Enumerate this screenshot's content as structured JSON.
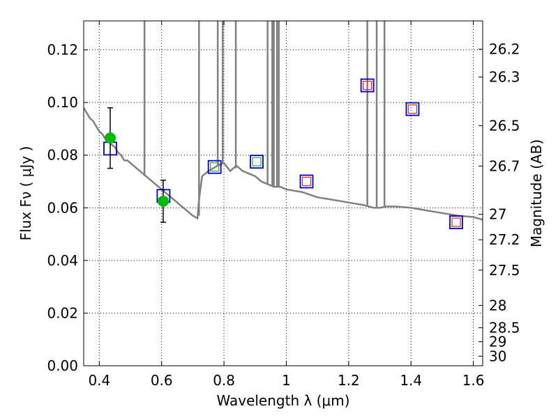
{
  "chart_data": {
    "type": "line",
    "xlabel": "Wavelength  λ (μm)",
    "ylabel": "Flux  Fν  ( μJy )",
    "y2label": "Magnitude (AB)",
    "xlim": [
      0.35,
      1.63
    ],
    "ylim": [
      0.0,
      0.131
    ],
    "x_ticks": [
      0.4,
      0.6,
      0.8,
      1.0,
      1.2,
      1.4,
      1.6
    ],
    "x_tick_labels": [
      "0.4",
      "0.6",
      "0.8",
      "1",
      "1.2",
      "1.4",
      "1.6"
    ],
    "y_ticks": [
      0.0,
      0.02,
      0.04,
      0.06,
      0.08,
      0.1,
      0.12
    ],
    "y_tick_labels": [
      "0.00",
      "0.02",
      "0.04",
      "0.06",
      "0.08",
      "0.10",
      "0.12"
    ],
    "y2_ticks": [
      26.2,
      26.3,
      26.5,
      26.7,
      27,
      27.2,
      27.5,
      28,
      28.5,
      29,
      30
    ],
    "y2_tick_labels": [
      "26.2",
      "26.3",
      "26.5",
      "26.7",
      "27",
      "27.2",
      "27.5",
      "28",
      "28.5",
      "29",
      "30"
    ],
    "grid": true,
    "colors": {
      "model": "#808080",
      "observed": "#00bb00",
      "model_band_box": "#0000cc",
      "band_box_red": "#dd3333",
      "band_box_green": "#33bb33"
    },
    "series": [
      {
        "style": "line",
        "points": [
          [
            0.35,
            0.098
          ],
          [
            0.36,
            0.096
          ],
          [
            0.37,
            0.094
          ],
          [
            0.38,
            0.093
          ],
          [
            0.39,
            0.091
          ],
          [
            0.4,
            0.089
          ],
          [
            0.41,
            0.088
          ],
          [
            0.42,
            0.086
          ],
          [
            0.43,
            0.085
          ],
          [
            0.44,
            0.084
          ],
          [
            0.45,
            0.083
          ],
          [
            0.46,
            0.081
          ],
          [
            0.47,
            0.08
          ],
          [
            0.48,
            0.078
          ],
          [
            0.49,
            0.078
          ],
          [
            0.5,
            0.077
          ],
          [
            0.52,
            0.075
          ],
          [
            0.54,
            0.073
          ],
          [
            0.56,
            0.071
          ],
          [
            0.58,
            0.069
          ],
          [
            0.6,
            0.067
          ],
          [
            0.62,
            0.065
          ],
          [
            0.64,
            0.063
          ],
          [
            0.66,
            0.061
          ],
          [
            0.68,
            0.059
          ],
          [
            0.7,
            0.057
          ],
          [
            0.715,
            0.056
          ],
          [
            0.72,
            0.063
          ],
          [
            0.73,
            0.072
          ],
          [
            0.75,
            0.074
          ],
          [
            0.78,
            0.076
          ],
          [
            0.8,
            0.077
          ],
          [
            0.82,
            0.074
          ],
          [
            0.84,
            0.076
          ],
          [
            0.86,
            0.074
          ],
          [
            0.88,
            0.073
          ],
          [
            0.9,
            0.072
          ],
          [
            0.92,
            0.07
          ],
          [
            0.94,
            0.069
          ],
          [
            0.96,
            0.068
          ],
          [
            0.98,
            0.068
          ],
          [
            1.0,
            0.067
          ],
          [
            1.05,
            0.066
          ],
          [
            1.1,
            0.064
          ],
          [
            1.15,
            0.063
          ],
          [
            1.2,
            0.062
          ],
          [
            1.25,
            0.061
          ],
          [
            1.28,
            0.06
          ],
          [
            1.3,
            0.06
          ],
          [
            1.32,
            0.0605
          ],
          [
            1.35,
            0.0605
          ],
          [
            1.4,
            0.06
          ],
          [
            1.45,
            0.059
          ],
          [
            1.5,
            0.058
          ],
          [
            1.55,
            0.057
          ],
          [
            1.6,
            0.0565
          ],
          [
            1.63,
            0.0555
          ]
        ],
        "spikes": [
          0.545,
          0.72,
          0.78,
          0.796,
          0.838,
          0.94,
          0.955,
          0.96,
          0.97,
          0.976,
          1.26,
          1.29,
          1.315
        ],
        "spike_bases": [
          0.072,
          0.057,
          0.076,
          0.077,
          0.075,
          0.069,
          0.068,
          0.068,
          0.068,
          0.068,
          0.061,
          0.06,
          0.06
        ]
      },
      {
        "style": "markers",
        "points": [
          [
            0.435,
            0.0865
          ],
          [
            0.605,
            0.0625
          ]
        ],
        "yerr": [
          0.0115,
          0.008
        ]
      },
      {
        "style": "box-markers",
        "points": [
          [
            0.435,
            0.0825
          ],
          [
            0.606,
            0.0645
          ],
          [
            0.77,
            0.0755
          ],
          [
            0.905,
            0.0775
          ],
          [
            1.065,
            0.07
          ],
          [
            1.26,
            0.1065
          ],
          [
            1.405,
            0.0975
          ],
          [
            1.545,
            0.0545
          ]
        ]
      },
      {
        "style": "small-box-markers",
        "points": [
          [
            0.77,
            0.0755
          ],
          [
            0.905,
            0.0775
          ],
          [
            1.065,
            0.07
          ],
          [
            1.26,
            0.1065
          ],
          [
            1.405,
            0.0975
          ],
          [
            1.545,
            0.0545
          ]
        ],
        "colors": [
          "#33bb33",
          "#33bb33",
          "#dd3333",
          "#dd3333",
          "#dd3333",
          "#dd3333"
        ]
      }
    ]
  }
}
